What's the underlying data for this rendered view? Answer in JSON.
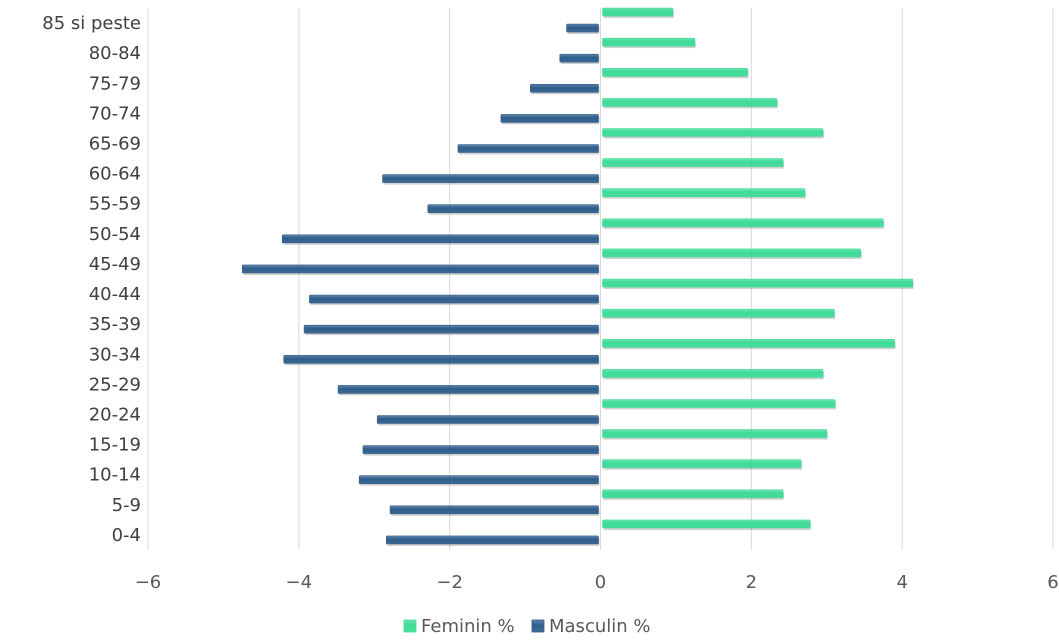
{
  "chart_data": {
    "type": "bar",
    "orientation": "horizontal",
    "title": "",
    "xlabel": "",
    "ylabel": "",
    "xlim": [
      -6,
      6
    ],
    "x_ticks": [
      -6,
      -4,
      -2,
      0,
      2,
      4,
      6
    ],
    "grid": true,
    "legend_position": "bottom",
    "categories": [
      "0-4",
      "5-9",
      "10-14",
      "15-19",
      "20-24",
      "25-29",
      "30-34",
      "35-39",
      "40-44",
      "45-49",
      "50-54",
      "55-59",
      "60-64",
      "65-69",
      "70-74",
      "75-79",
      "80-84",
      "85 si peste"
    ],
    "series": [
      {
        "name": "Feminin %",
        "color": "#3ddc97",
        "values": [
          2.78,
          2.42,
          2.66,
          3.0,
          3.11,
          2.95,
          3.9,
          3.1,
          4.14,
          3.45,
          3.75,
          2.71,
          2.42,
          2.95,
          2.34,
          1.95,
          1.25,
          0.96
        ]
      },
      {
        "name": "Masculin %",
        "color": "#2e5e8c",
        "values": [
          -2.84,
          -2.79,
          -3.2,
          -3.15,
          -2.96,
          -3.48,
          -4.2,
          -3.93,
          -3.86,
          -4.75,
          -4.22,
          -2.29,
          -2.89,
          -1.89,
          -1.32,
          -0.93,
          -0.54,
          -0.45
        ]
      }
    ]
  }
}
